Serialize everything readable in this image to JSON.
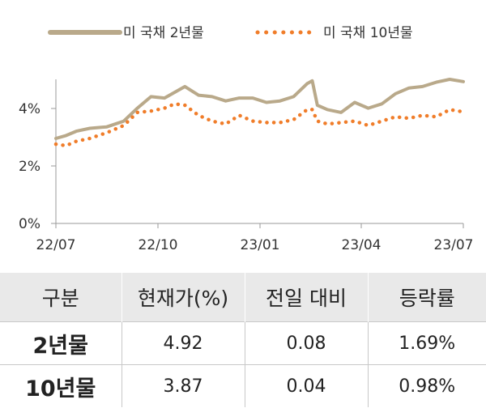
{
  "chart_data": {
    "type": "line",
    "title": "",
    "xlabel": "",
    "ylabel": "",
    "x_ticks": [
      "22/07",
      "22/10",
      "23/01",
      "23/04",
      "23/07"
    ],
    "y_ticks": [
      "0%",
      "2%",
      "4%"
    ],
    "ylim": [
      0,
      5
    ],
    "xlim": [
      0,
      12
    ],
    "legend_position": "top",
    "grid": false,
    "series": [
      {
        "name": "미 국채 2년물",
        "style": "solid",
        "color": "#b9a98a",
        "x": [
          0,
          0.3,
          0.6,
          1.0,
          1.5,
          2.0,
          2.4,
          2.8,
          3.2,
          3.5,
          3.8,
          4.2,
          4.6,
          5.0,
          5.4,
          5.8,
          6.2,
          6.6,
          7.0,
          7.4,
          7.55,
          7.7,
          8.0,
          8.4,
          8.8,
          9.2,
          9.6,
          10.0,
          10.4,
          10.8,
          11.2,
          11.6,
          12.0
        ],
        "y": [
          2.95,
          3.05,
          3.2,
          3.3,
          3.35,
          3.55,
          4.0,
          4.4,
          4.35,
          4.55,
          4.75,
          4.45,
          4.4,
          4.25,
          4.35,
          4.35,
          4.2,
          4.25,
          4.4,
          4.85,
          4.95,
          4.1,
          3.95,
          3.85,
          4.2,
          4.0,
          4.15,
          4.5,
          4.7,
          4.75,
          4.9,
          5.0,
          4.92
        ]
      },
      {
        "name": "미 국채 10년물",
        "style": "dotted",
        "color": "#f07d2a",
        "x": [
          0,
          0.3,
          0.6,
          1.0,
          1.5,
          2.0,
          2.4,
          2.8,
          3.2,
          3.5,
          3.8,
          4.2,
          4.6,
          5.0,
          5.4,
          5.8,
          6.2,
          6.6,
          7.0,
          7.4,
          7.55,
          7.7,
          8.0,
          8.4,
          8.8,
          9.2,
          9.6,
          10.0,
          10.4,
          10.8,
          11.2,
          11.6,
          12.0
        ],
        "y": [
          2.75,
          2.7,
          2.85,
          2.95,
          3.15,
          3.4,
          3.85,
          3.9,
          4.0,
          4.15,
          4.1,
          3.75,
          3.55,
          3.45,
          3.75,
          3.55,
          3.5,
          3.5,
          3.6,
          3.95,
          3.95,
          3.55,
          3.45,
          3.5,
          3.55,
          3.4,
          3.55,
          3.7,
          3.65,
          3.75,
          3.7,
          3.95,
          3.87
        ]
      }
    ]
  },
  "table": {
    "headers": [
      "구분",
      "현재가(%)",
      "전일 대비",
      "등락률"
    ],
    "rows": [
      [
        "2년물",
        "4.92",
        "0.08",
        "1.69%"
      ],
      [
        "10년물",
        "3.87",
        "0.04",
        "0.98%"
      ]
    ]
  }
}
